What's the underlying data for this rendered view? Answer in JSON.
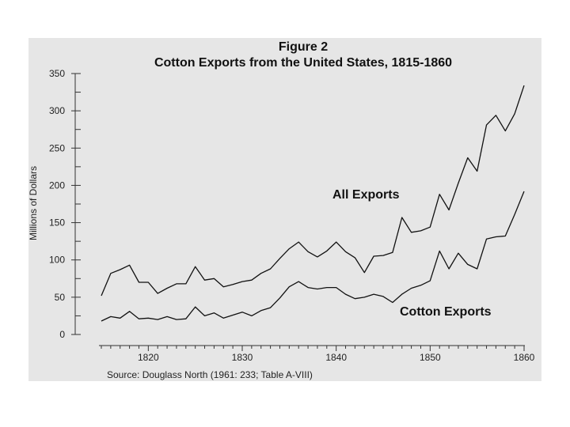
{
  "chart_data": {
    "type": "line",
    "title": "Figure 2",
    "subtitle": "Cotton Exports from the United States, 1815-1860",
    "ylabel": "Millions of Dollars",
    "xlabel": "",
    "source": "Source: Douglass North (1961: 233; Table A-VIII)",
    "xlim": [
      1815,
      1860
    ],
    "ylim": [
      0,
      350
    ],
    "x_ticks": [
      "1820",
      "1830",
      "1840",
      "1850",
      "1860"
    ],
    "y_ticks": [
      "0",
      "50",
      "100",
      "150",
      "200",
      "250",
      "300",
      "350"
    ],
    "grid": false,
    "x": [
      1815,
      1816,
      1817,
      1818,
      1819,
      1820,
      1821,
      1822,
      1823,
      1824,
      1825,
      1826,
      1827,
      1828,
      1829,
      1830,
      1831,
      1832,
      1833,
      1834,
      1835,
      1836,
      1837,
      1838,
      1839,
      1840,
      1841,
      1842,
      1843,
      1844,
      1845,
      1846,
      1847,
      1848,
      1849,
      1850,
      1851,
      1852,
      1853,
      1854,
      1855,
      1856,
      1857,
      1858,
      1859,
      1860
    ],
    "series": [
      {
        "name": "All Exports",
        "values": [
          52,
          82,
          87,
          93,
          70,
          70,
          55,
          62,
          68,
          68,
          91,
          73,
          75,
          64,
          67,
          71,
          73,
          82,
          88,
          102,
          115,
          124,
          111,
          104,
          112,
          124,
          111,
          103,
          83,
          105,
          106,
          110,
          157,
          137,
          139,
          144,
          188,
          167,
          203,
          237,
          219,
          281,
          294,
          273,
          296,
          334
        ]
      },
      {
        "name": "Cotton Exports",
        "values": [
          18,
          24,
          22,
          31,
          21,
          22,
          20,
          24,
          20,
          21,
          37,
          25,
          29,
          22,
          26,
          30,
          25,
          32,
          36,
          49,
          64,
          71,
          63,
          61,
          63,
          63,
          54,
          48,
          50,
          54,
          51,
          43,
          54,
          62,
          66,
          72,
          112,
          88,
          109,
          94,
          88,
          128,
          131,
          132,
          161,
          192
        ]
      }
    ]
  }
}
